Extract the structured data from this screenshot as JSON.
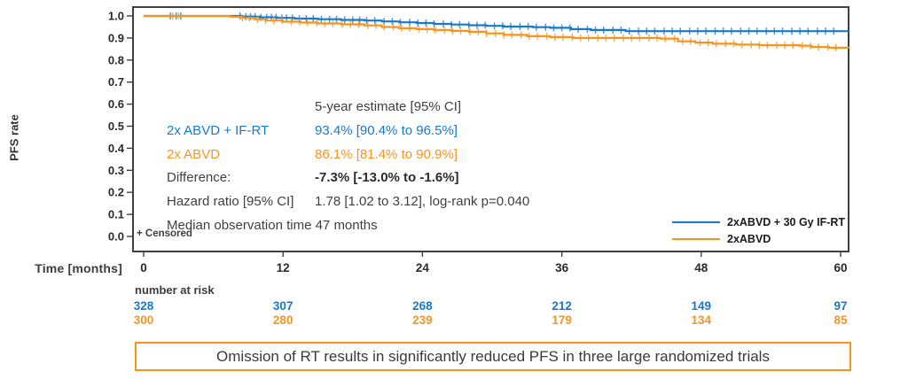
{
  "figure": {
    "y_axis_label": "PFS rate",
    "x_axis_label": "Time [months]",
    "censored_note": "+ Censored"
  },
  "stats_panel": {
    "header": "5-year estimate [95% CI]",
    "rows": [
      {
        "label": "2x ABVD + IF-RT",
        "value": "93.4% [90.4% to 96.5%]"
      },
      {
        "label": "2x ABVD",
        "value": "86.1% [81.4% to 90.9%]"
      },
      {
        "label": "Difference:",
        "value": "-7.3% [-13.0% to -1.6%]"
      },
      {
        "label": "Hazard ratio [95% CI]",
        "value": "1.78 [1.02 to 3.12], log-rank p=0.040"
      }
    ],
    "footer": "Median observation time 47 months"
  },
  "legend": [
    {
      "label": "2xABVD + 30 Gy IF-RT",
      "color": "#1679cd"
    },
    {
      "label": "2xABVD",
      "color": "#f7941e"
    }
  ],
  "risk_table": {
    "title": "number at risk",
    "rows": [
      {
        "series": "2xABVD + 30 Gy IF-RT",
        "color": "#1679cd",
        "values": [
          "328",
          "307",
          "268",
          "212",
          "149",
          "97"
        ]
      },
      {
        "series": "2xABVD",
        "color": "#f7941e",
        "values": [
          "300",
          "280",
          "239",
          "179",
          "134",
          "85"
        ]
      }
    ]
  },
  "caption": "Omission of RT results in significantly reduced PFS in three large randomized trials",
  "colors": {
    "blue": "#1679cd",
    "orange": "#f7941e",
    "frame": "#3f3f3f",
    "text": "#3d3d3d",
    "caption_border": "#f7941e"
  },
  "chart_data": {
    "type": "line",
    "subtype": "kaplan-meier-step",
    "title": "",
    "xlabel": "Time [months]",
    "ylabel": "PFS rate",
    "xlim": [
      0,
      60
    ],
    "ylim": [
      0.0,
      1.0
    ],
    "grid": false,
    "legend_position": "inside-lower-right",
    "x_ticks": [
      0,
      12,
      24,
      36,
      48,
      60
    ],
    "y_ticks": [
      "1.0",
      "0.9",
      "0.8",
      "0.7",
      "0.6",
      "0.5",
      "0.4",
      "0.3",
      "0.2",
      "0.1",
      "0.0"
    ],
    "series": [
      {
        "name": "2xABVD + 30 Gy IF-RT",
        "color": "#1679cd",
        "five_year_estimate": "93.4% [90.4% to 96.5%]",
        "number_at_risk": [
          328,
          307,
          268,
          212,
          149,
          97
        ],
        "points": [
          [
            0,
            1.0
          ],
          [
            8,
            1.0
          ],
          [
            8.5,
            0.997
          ],
          [
            10,
            0.994
          ],
          [
            11.5,
            0.991
          ],
          [
            13,
            0.988
          ],
          [
            15,
            0.985
          ],
          [
            17,
            0.982
          ],
          [
            19,
            0.979
          ],
          [
            20.5,
            0.975
          ],
          [
            22,
            0.971
          ],
          [
            23.5,
            0.968
          ],
          [
            25,
            0.964
          ],
          [
            26.5,
            0.961
          ],
          [
            28,
            0.958
          ],
          [
            29.5,
            0.955
          ],
          [
            31,
            0.952
          ],
          [
            33.5,
            0.949
          ],
          [
            35,
            0.946
          ],
          [
            36.8,
            0.94
          ],
          [
            38.5,
            0.936
          ],
          [
            41.5,
            0.931
          ],
          [
            60.7,
            0.931
          ]
        ],
        "censor_months": [
          2.3,
          2.8,
          3.2,
          8.3,
          8.8,
          9.2,
          9.6,
          10.1,
          10.6,
          11,
          11.4,
          11.9,
          12.3,
          12.8,
          13.4,
          14,
          14.6,
          15.3,
          16,
          16.6,
          17.3,
          18,
          18.6,
          19.2,
          19.9,
          20.7,
          21.4,
          22.1,
          22.9,
          23.6,
          24.3,
          25,
          25.8,
          26.5,
          27.2,
          28,
          28.7,
          29.4,
          30.2,
          30.9,
          31.6,
          32.4,
          33.1,
          33.8,
          34.6,
          35.3,
          36,
          36.7,
          37.4,
          38.2,
          38.9,
          39.6,
          40.4,
          41.1,
          41.8,
          42.6,
          43.3,
          44,
          44.8,
          45.5,
          46.2,
          47,
          47.7,
          48.4,
          49.2,
          49.9,
          50.6,
          51.4,
          52.1,
          52.8,
          53.6,
          54.3,
          55,
          55.8,
          56.5,
          57.2,
          58,
          58.7,
          59.4
        ]
      },
      {
        "name": "2xABVD",
        "color": "#f7941e",
        "five_year_estimate": "86.1% [81.4% to 90.9%]",
        "number_at_risk": [
          300,
          280,
          239,
          179,
          134,
          85
        ],
        "points": [
          [
            0,
            1.0
          ],
          [
            7,
            1.0
          ],
          [
            7.5,
            0.996
          ],
          [
            8.5,
            0.991
          ],
          [
            9.5,
            0.985
          ],
          [
            10.5,
            0.979
          ],
          [
            12,
            0.974
          ],
          [
            13.5,
            0.97
          ],
          [
            15,
            0.966
          ],
          [
            17,
            0.962
          ],
          [
            19,
            0.957
          ],
          [
            20.5,
            0.95
          ],
          [
            22,
            0.944
          ],
          [
            23.5,
            0.94
          ],
          [
            25,
            0.936
          ],
          [
            26.5,
            0.932
          ],
          [
            28,
            0.928
          ],
          [
            29.5,
            0.921
          ],
          [
            31,
            0.914
          ],
          [
            33,
            0.908
          ],
          [
            35,
            0.904
          ],
          [
            37,
            0.9
          ],
          [
            44.5,
            0.897
          ],
          [
            46,
            0.885
          ],
          [
            47.5,
            0.879
          ],
          [
            49,
            0.874
          ],
          [
            51,
            0.87
          ],
          [
            53,
            0.867
          ],
          [
            56.5,
            0.865
          ],
          [
            57.5,
            0.859
          ],
          [
            59,
            0.856
          ],
          [
            60.7,
            0.854
          ]
        ],
        "censor_months": [
          2.5,
          3,
          8.5,
          9.1,
          9.8,
          10.5,
          11.2,
          11.9,
          12.7,
          13.4,
          14.1,
          14.9,
          15.6,
          16.3,
          17.1,
          17.8,
          18.5,
          19.3,
          20,
          20.7,
          21.5,
          22.2,
          22.9,
          23.7,
          24.4,
          25.1,
          25.9,
          26.6,
          27.3,
          28.1,
          28.8,
          29.5,
          30.3,
          31,
          31.7,
          32.5,
          33.2,
          33.9,
          34.7,
          35.4,
          36.1,
          36.9,
          37.6,
          38.3,
          39.1,
          39.8,
          40.5,
          41.3,
          42,
          42.7,
          43.5,
          44.2,
          44.9,
          45.7,
          46.4,
          47.1,
          47.9,
          48.6,
          49.3,
          50.1,
          50.8,
          51.5,
          52.3,
          53,
          53.7,
          54.5,
          55.2,
          55.9,
          56.7,
          57.4,
          58.1,
          58.9,
          59.6
        ]
      }
    ],
    "annotations": {
      "difference": "-7.3% [-13.0% to -1.6%]",
      "hazard_ratio": "1.78 [1.02 to 3.12], log-rank p=0.040",
      "median_observation": "Median observation time 47 months"
    }
  }
}
